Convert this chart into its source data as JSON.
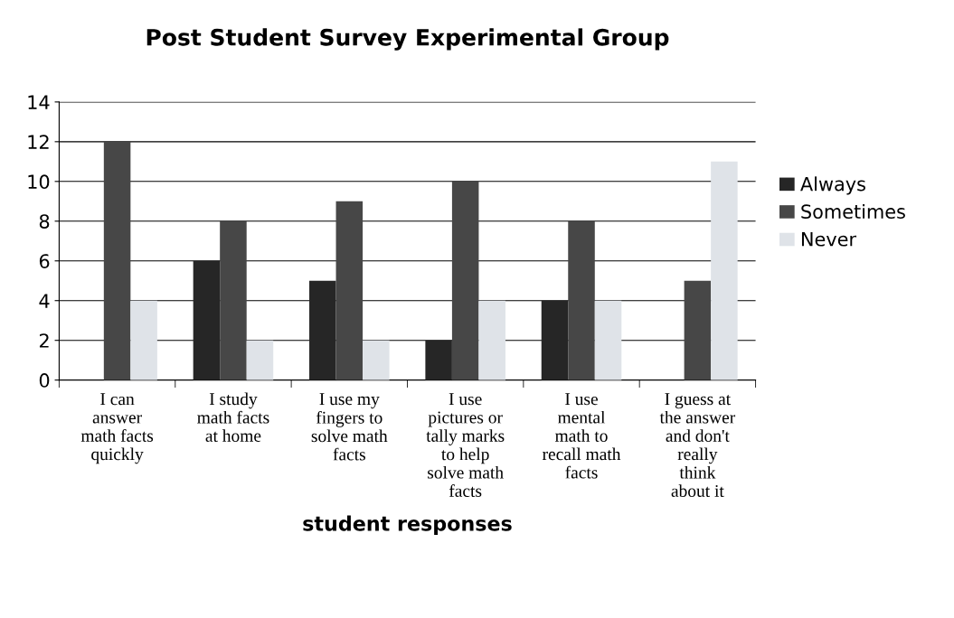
{
  "chart_data": {
    "type": "bar",
    "title": "Post Student Survey Experimental Group",
    "xlabel": "student responses",
    "categories": [
      "I can\nanswer\nmath facts\nquickly",
      "I study\nmath facts\nat home",
      "I use my\nfingers to\nsolve math\nfacts",
      "I use\npictures or\ntally marks\nto help\nsolve math\nfacts",
      "I use\nmental\nmath to\nrecall math\nfacts",
      "I guess at\nthe answer\nand don't\nreally\nthink\nabout it"
    ],
    "series": [
      {
        "name": "Always",
        "color": "#262626",
        "values": [
          0,
          6,
          5,
          2,
          4,
          0
        ]
      },
      {
        "name": "Sometimes",
        "color": "#474747",
        "values": [
          12,
          8,
          9,
          10,
          8,
          5
        ]
      },
      {
        "name": "Never",
        "color": "#dfe3e8",
        "values": [
          4,
          2,
          2,
          4,
          4,
          11
        ]
      }
    ],
    "ylim": [
      0,
      14
    ],
    "yticks": [
      0,
      2,
      4,
      6,
      8,
      10,
      12,
      14
    ],
    "grid": "y",
    "legend": "right"
  }
}
